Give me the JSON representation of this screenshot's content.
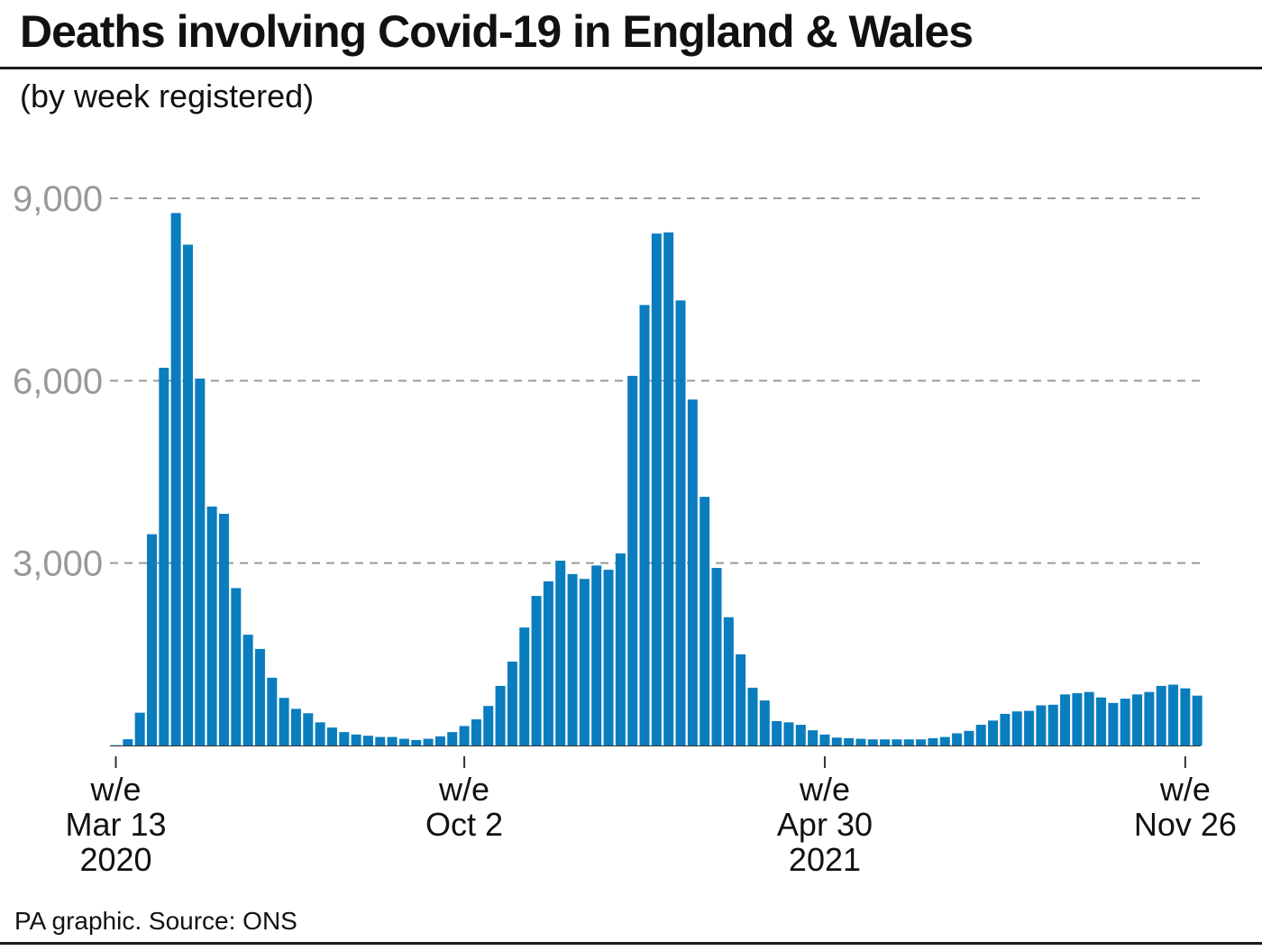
{
  "title": "Deaths involving Covid-19 in England & Wales",
  "subtitle": "(by week registered)",
  "source": "PA graphic. Source: ONS",
  "colors": {
    "bar": "#0a7dbf",
    "grid": "#9a9a9a",
    "tick_text": "#999999",
    "axis": "#333333",
    "text": "#111111"
  },
  "chart_data": {
    "type": "bar",
    "title": "Deaths involving Covid-19 in England & Wales",
    "subtitle": "(by week registered)",
    "xlabel": "",
    "ylabel": "",
    "ylim": [
      0,
      9000
    ],
    "yticks": [
      3000,
      6000,
      9000
    ],
    "ytick_labels": [
      "3,000",
      "6,000",
      "9,000"
    ],
    "grid": "horizontal dashed",
    "x_tick_labels": [
      {
        "index": 0,
        "lines": [
          "w/e",
          "Mar 13",
          "2020"
        ]
      },
      {
        "index": 29,
        "lines": [
          "w/e",
          "Oct 2"
        ]
      },
      {
        "index": 59,
        "lines": [
          "w/e",
          "Apr 30",
          "2021"
        ]
      },
      {
        "index": 89,
        "lines": [
          "w/e",
          "Nov 26"
        ]
      }
    ],
    "values": [
      5,
      103,
      539,
      3475,
      6213,
      8758,
      8237,
      6035,
      3930,
      3810,
      2589,
      1822,
      1588,
      1114,
      783,
      602,
      530,
      380,
      295,
      220,
      180,
      160,
      140,
      140,
      110,
      90,
      110,
      150,
      220,
      320,
      430,
      650,
      980,
      1380,
      1940,
      2460,
      2700,
      3040,
      2820,
      2740,
      2960,
      2890,
      3160,
      6080,
      7245,
      8420,
      8440,
      7320,
      5690,
      4090,
      2920,
      2110,
      1500,
      950,
      740,
      400,
      380,
      340,
      250,
      180,
      130,
      120,
      110,
      100,
      100,
      100,
      100,
      100,
      120,
      140,
      200,
      240,
      340,
      410,
      520,
      560,
      570,
      660,
      670,
      840,
      860,
      880,
      790,
      700,
      770,
      840,
      880,
      980,
      1000,
      940,
      820
    ]
  }
}
